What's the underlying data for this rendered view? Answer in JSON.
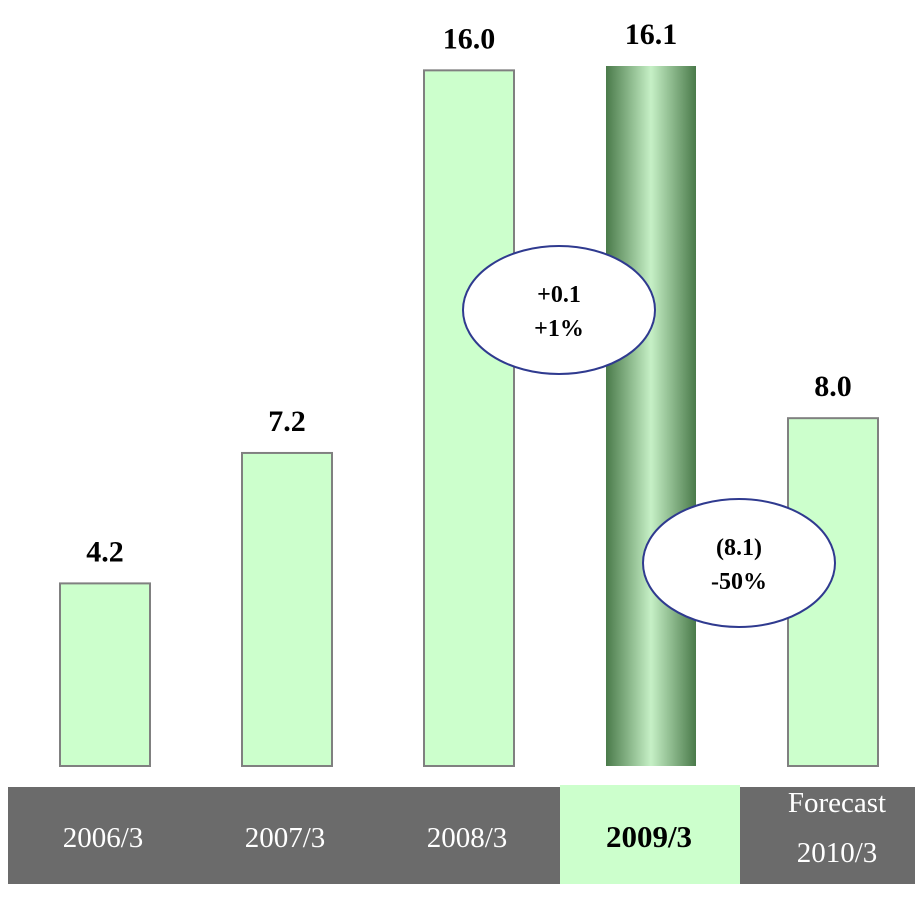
{
  "chart_data": {
    "type": "bar",
    "categories": [
      {
        "lines": [
          "2006/3"
        ],
        "highlight": false
      },
      {
        "lines": [
          "2007/3"
        ],
        "highlight": false
      },
      {
        "lines": [
          "2008/3"
        ],
        "highlight": false
      },
      {
        "lines": [
          "2009/3"
        ],
        "highlight": true
      },
      {
        "lines": [
          "Forecast",
          "2010/3"
        ],
        "highlight": false
      }
    ],
    "values": [
      4.2,
      7.2,
      16.0,
      16.1,
      8.0
    ],
    "value_labels": [
      "4.2",
      "7.2",
      "16.0",
      "16.1",
      "8.0"
    ],
    "ylim": [
      0,
      16.1
    ],
    "annotations": [
      {
        "lines": [
          "+0.1",
          "+1%"
        ],
        "between": [
          2,
          3
        ]
      },
      {
        "lines": [
          "(8.1)",
          "-50%"
        ],
        "between": [
          3,
          4
        ]
      }
    ],
    "grid": false,
    "colors": {
      "bar_fill": "#ccffcc",
      "bar_stroke": "#808080",
      "highlight_mid": "#c6f0c6",
      "highlight_edge": "#4a7a4a",
      "category_band": "#6b6b6b",
      "category_highlight": "#ccffcc",
      "bubble_stroke": "#2f3a8f"
    }
  }
}
